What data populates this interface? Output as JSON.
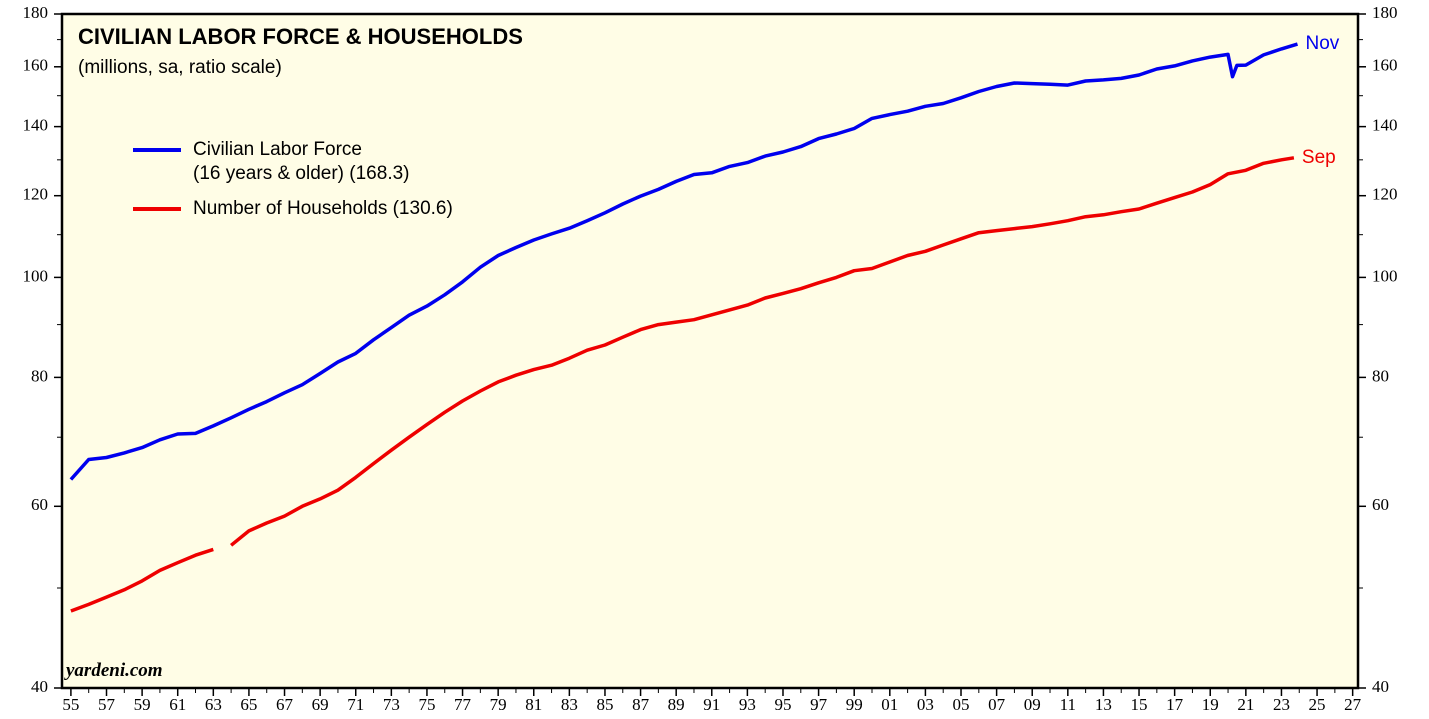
{
  "chart_data": {
    "type": "line",
    "title": "CIVILIAN LABOR FORCE & HOUSEHOLDS",
    "subtitle": "(millions, sa, ratio scale)",
    "source": "yardeni.com",
    "log_scale": true,
    "xlim": [
      1954.5,
      2027.3
    ],
    "ylim": [
      40,
      180
    ],
    "yticks": [
      40,
      60,
      80,
      100,
      120,
      140,
      160,
      180
    ],
    "y_minor_ticks": [
      50,
      70,
      90,
      110,
      130,
      150,
      170
    ],
    "xticks": [
      {
        "value": 1955,
        "label": "55"
      },
      {
        "value": 1957,
        "label": "57"
      },
      {
        "value": 1959,
        "label": "59"
      },
      {
        "value": 1961,
        "label": "61"
      },
      {
        "value": 1963,
        "label": "63"
      },
      {
        "value": 1965,
        "label": "65"
      },
      {
        "value": 1967,
        "label": "67"
      },
      {
        "value": 1969,
        "label": "69"
      },
      {
        "value": 1971,
        "label": "71"
      },
      {
        "value": 1973,
        "label": "73"
      },
      {
        "value": 1975,
        "label": "75"
      },
      {
        "value": 1977,
        "label": "77"
      },
      {
        "value": 1979,
        "label": "79"
      },
      {
        "value": 1981,
        "label": "81"
      },
      {
        "value": 1983,
        "label": "83"
      },
      {
        "value": 1985,
        "label": "85"
      },
      {
        "value": 1987,
        "label": "87"
      },
      {
        "value": 1989,
        "label": "89"
      },
      {
        "value": 1991,
        "label": "91"
      },
      {
        "value": 1993,
        "label": "93"
      },
      {
        "value": 1995,
        "label": "95"
      },
      {
        "value": 1997,
        "label": "97"
      },
      {
        "value": 1999,
        "label": "99"
      },
      {
        "value": 2001,
        "label": "01"
      },
      {
        "value": 2003,
        "label": "03"
      },
      {
        "value": 2005,
        "label": "05"
      },
      {
        "value": 2007,
        "label": "07"
      },
      {
        "value": 2009,
        "label": "09"
      },
      {
        "value": 2011,
        "label": "11"
      },
      {
        "value": 2013,
        "label": "13"
      },
      {
        "value": 2015,
        "label": "15"
      },
      {
        "value": 2017,
        "label": "17"
      },
      {
        "value": 2019,
        "label": "19"
      },
      {
        "value": 2021,
        "label": "21"
      },
      {
        "value": 2023,
        "label": "23"
      },
      {
        "value": 2025,
        "label": "25"
      },
      {
        "value": 2027,
        "label": "27"
      }
    ],
    "x_minor_ticks": [
      1956,
      1958,
      1960,
      1962,
      1964,
      1966,
      1968,
      1970,
      1972,
      1974,
      1976,
      1978,
      1980,
      1982,
      1984,
      1986,
      1988,
      1990,
      1992,
      1994,
      1996,
      1998,
      2000,
      2002,
      2004,
      2006,
      2008,
      2010,
      2012,
      2014,
      2016,
      2018,
      2020,
      2022,
      2024,
      2026
    ],
    "series": [
      {
        "name": "Civilian Labor Force\n(16 years & older) (168.3)",
        "color": "#0000ee",
        "end_label": "Nov",
        "x": [
          1955,
          1956,
          1957,
          1958,
          1959,
          1960,
          1961,
          1962,
          1963,
          1964,
          1965,
          1966,
          1967,
          1968,
          1969,
          1970,
          1971,
          1972,
          1973,
          1974,
          1975,
          1976,
          1977,
          1978,
          1979,
          1980,
          1981,
          1982,
          1983,
          1984,
          1985,
          1986,
          1987,
          1988,
          1989,
          1990,
          1991,
          1992,
          1993,
          1994,
          1995,
          1996,
          1997,
          1998,
          1999,
          2000,
          2001,
          2002,
          2003,
          2004,
          2005,
          2006,
          2007,
          2008,
          2009,
          2010,
          2011,
          2012,
          2013,
          2014,
          2015,
          2016,
          2017,
          2018,
          2019,
          2020,
          2020.25,
          2020.5,
          2021,
          2022,
          2023,
          2023.9
        ],
        "values": [
          63.7,
          66.6,
          66.9,
          67.6,
          68.4,
          69.6,
          70.5,
          70.6,
          71.8,
          73.1,
          74.5,
          75.8,
          77.3,
          78.7,
          80.7,
          82.8,
          84.4,
          87.0,
          89.4,
          91.9,
          93.8,
          96.2,
          99.0,
          102.3,
          105.0,
          106.9,
          108.7,
          110.2,
          111.6,
          113.5,
          115.5,
          117.8,
          119.9,
          121.7,
          123.9,
          125.8,
          126.3,
          128.1,
          129.2,
          131.1,
          132.3,
          133.9,
          136.3,
          137.7,
          139.4,
          142.6,
          143.8,
          144.9,
          146.5,
          147.4,
          149.3,
          151.4,
          153.1,
          154.3,
          154.1,
          153.9,
          153.6,
          155.0,
          155.4,
          155.9,
          157.1,
          159.2,
          160.3,
          162.1,
          163.5,
          164.5,
          156.5,
          160.5,
          160.6,
          164.3,
          166.5,
          168.3
        ]
      },
      {
        "name": "Number of Households (130.6)",
        "color": "#ee0000",
        "end_label": "Sep",
        "x": [
          1955,
          1956,
          1957,
          1958,
          1959,
          1960,
          1961,
          1962,
          1963,
          1963.5,
          1964,
          1965,
          1966,
          1967,
          1968,
          1969,
          1970,
          1971,
          1972,
          1973,
          1974,
          1975,
          1976,
          1977,
          1978,
          1979,
          1980,
          1981,
          1982,
          1983,
          1984,
          1985,
          1986,
          1987,
          1988,
          1989,
          1990,
          1991,
          1992,
          1993,
          1994,
          1995,
          1996,
          1997,
          1998,
          1999,
          2000,
          2001,
          2002,
          2003,
          2004,
          2005,
          2006,
          2007,
          2008,
          2009,
          2010,
          2011,
          2012,
          2013,
          2014,
          2015,
          2016,
          2017,
          2018,
          2019,
          2020,
          2021,
          2022,
          2023,
          2023.7
        ],
        "values": [
          47.5,
          48.2,
          49.0,
          49.8,
          50.8,
          52.0,
          52.9,
          53.8,
          54.5,
          null,
          55.0,
          56.8,
          57.8,
          58.7,
          60.0,
          61.0,
          62.2,
          64.0,
          66.0,
          68.0,
          70.0,
          72.0,
          74.0,
          75.9,
          77.6,
          79.2,
          80.4,
          81.4,
          82.2,
          83.5,
          85.0,
          86.0,
          87.5,
          89.0,
          90.0,
          90.5,
          91.0,
          92.0,
          93.0,
          94.0,
          95.5,
          96.5,
          97.5,
          98.8,
          100.0,
          101.5,
          102.0,
          103.5,
          105.0,
          106.0,
          107.5,
          109.0,
          110.5,
          111.0,
          111.5,
          112.0,
          112.7,
          113.5,
          114.5,
          115.0,
          115.8,
          116.5,
          118.0,
          119.5,
          121.0,
          123.0,
          126.0,
          127.0,
          129.0,
          130.0,
          130.6
        ]
      }
    ]
  }
}
